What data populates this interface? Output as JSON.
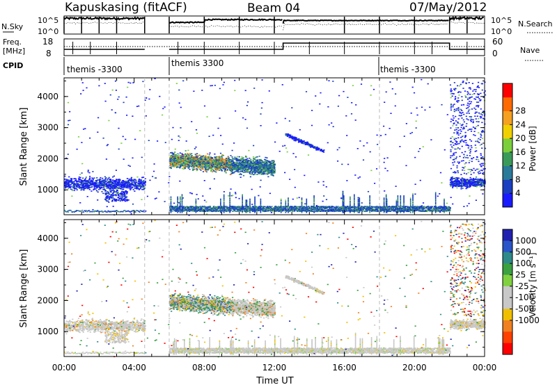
{
  "header": {
    "station": "Kapuskasing (fitACF)",
    "beam": "Beam 04",
    "date": "07/May/2012"
  },
  "summary_panels": {
    "nsky_label": "N.Sky",
    "nsky_ticks": [
      "10^5",
      "10^0"
    ],
    "nsearch_label": "N.Search",
    "nsearch_ticks": [
      "10^5",
      "10^0"
    ],
    "freq_label": "Freq.",
    "freq_unit": "[MHz]",
    "freq_ticks": [
      "18",
      "8"
    ],
    "nave_label": "Nave",
    "nave_ticks": [
      "60",
      "0"
    ],
    "cpid_label": "CPID",
    "cpid_segments": [
      {
        "label": "themis -3300",
        "start_hour": 0
      },
      {
        "label": "themis 3300",
        "start_hour": 6
      },
      {
        "label": "themis -3300",
        "start_hour": 18
      }
    ]
  },
  "chart_data": [
    {
      "type": "heatmap",
      "name": "power-panel",
      "ylabel": "Slant Range [km]",
      "xlabel": "",
      "x_range_hours": [
        0,
        24
      ],
      "ylim": [
        200,
        4600
      ],
      "yticks": [
        "1000",
        "2000",
        "3000",
        "4000"
      ],
      "colorbar": {
        "label": "Power [dB]",
        "ticks": [
          "4",
          "8",
          "12",
          "16",
          "20",
          "24",
          "28"
        ],
        "colors": [
          "#1a1aff",
          "#1a3fc0",
          "#2a7a9a",
          "#3a9a5a",
          "#7bcf3c",
          "#f0d000",
          "#f4a020",
          "#ff6a00",
          "#ff0000"
        ]
      }
    },
    {
      "type": "heatmap",
      "name": "velocity-panel",
      "ylabel": "Slant Range [km]",
      "xlabel": "Time UT",
      "x_range_hours": [
        0,
        24
      ],
      "ylim": [
        200,
        4600
      ],
      "yticks": [
        "1000",
        "2000",
        "3000",
        "4000"
      ],
      "xticks": [
        "00:00",
        "04:00",
        "08:00",
        "12:00",
        "16:00",
        "20:00",
        "00:00"
      ],
      "colorbar": {
        "label": "Velocity [m s⁻¹]",
        "ticks": [
          "1000",
          "500",
          "100",
          "25",
          "-25",
          "-100",
          "-500",
          "-1000"
        ],
        "colors": [
          "#2020b0",
          "#2a55c8",
          "#2e8a8a",
          "#3aa040",
          "#80d040",
          "#c8c8c8",
          "#c8c8c8",
          "#f0c000",
          "#f08020",
          "#ff4000",
          "#ff0000"
        ]
      }
    }
  ]
}
